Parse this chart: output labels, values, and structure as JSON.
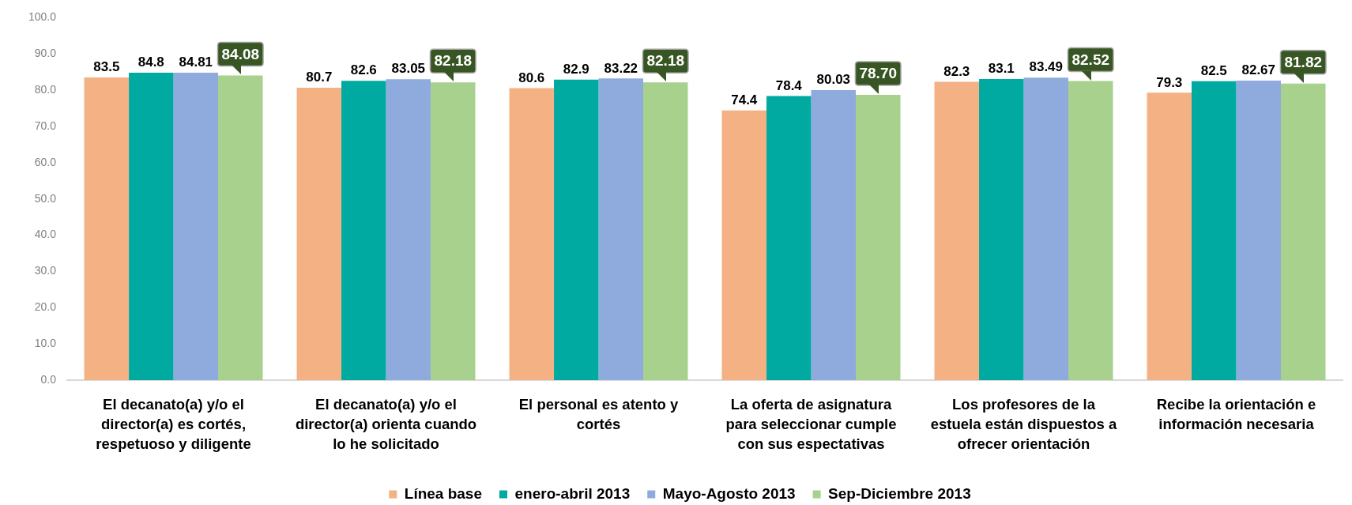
{
  "chart_data": {
    "type": "bar",
    "categories": [
      "El decanato(a) y/o el director(a) es cortés, respetuoso y diligente",
      "El decanato(a) y/o el director(a) orienta cuando lo he solicitado",
      "El personal es atento y cortés",
      "La oferta de asignatura para seleccionar cumple con sus espectativas",
      "Los profesores de la estuela están dispuestos a ofrecer orientación",
      "Recibe la orientación e información necesaria"
    ],
    "series": [
      {
        "name": "Línea base",
        "color": "#f4b183",
        "values": [
          83.5,
          80.7,
          80.6,
          74.4,
          82.3,
          79.3
        ],
        "value_labels": [
          "83.5",
          "80.7",
          "80.6",
          "74.4",
          "82.3",
          "79.3"
        ]
      },
      {
        "name": "enero-abril 2013",
        "color": "#00aaa0",
        "values": [
          84.8,
          82.6,
          82.9,
          78.4,
          83.1,
          82.5
        ],
        "value_labels": [
          "84.8",
          "82.6",
          "82.9",
          "78.4",
          "83.1",
          "82.5"
        ]
      },
      {
        "name": "Mayo-Agosto 2013",
        "color": "#8faadc",
        "values": [
          84.81,
          83.05,
          83.22,
          80.03,
          83.49,
          82.67
        ],
        "value_labels": [
          "84.81",
          "83.05",
          "83.22",
          "80.03",
          "83.49",
          "82.67"
        ]
      },
      {
        "name": "Sep-Diciembre 2013",
        "color": "#a9d18e",
        "values": [
          84.08,
          82.18,
          82.18,
          78.7,
          82.52,
          81.82
        ],
        "value_labels": [
          "84.08",
          "82.18",
          "82.18",
          "78.70",
          "82.52",
          "81.82"
        ]
      }
    ],
    "ylim": [
      0,
      100
    ],
    "yticks": [
      {
        "value": 0,
        "label": "0.0"
      },
      {
        "value": 10,
        "label": "10.0"
      },
      {
        "value": 20,
        "label": "20.0"
      },
      {
        "value": 30,
        "label": "30.0"
      },
      {
        "value": 40,
        "label": "40.0"
      },
      {
        "value": 50,
        "label": "50.0"
      },
      {
        "value": 60,
        "label": "60.0"
      },
      {
        "value": 70,
        "label": "70.0"
      },
      {
        "value": 80,
        "label": "80.0"
      },
      {
        "value": 90,
        "label": "90.0"
      },
      {
        "value": 100,
        "label": "100.0"
      }
    ],
    "grid": false,
    "legend": "bottom"
  }
}
